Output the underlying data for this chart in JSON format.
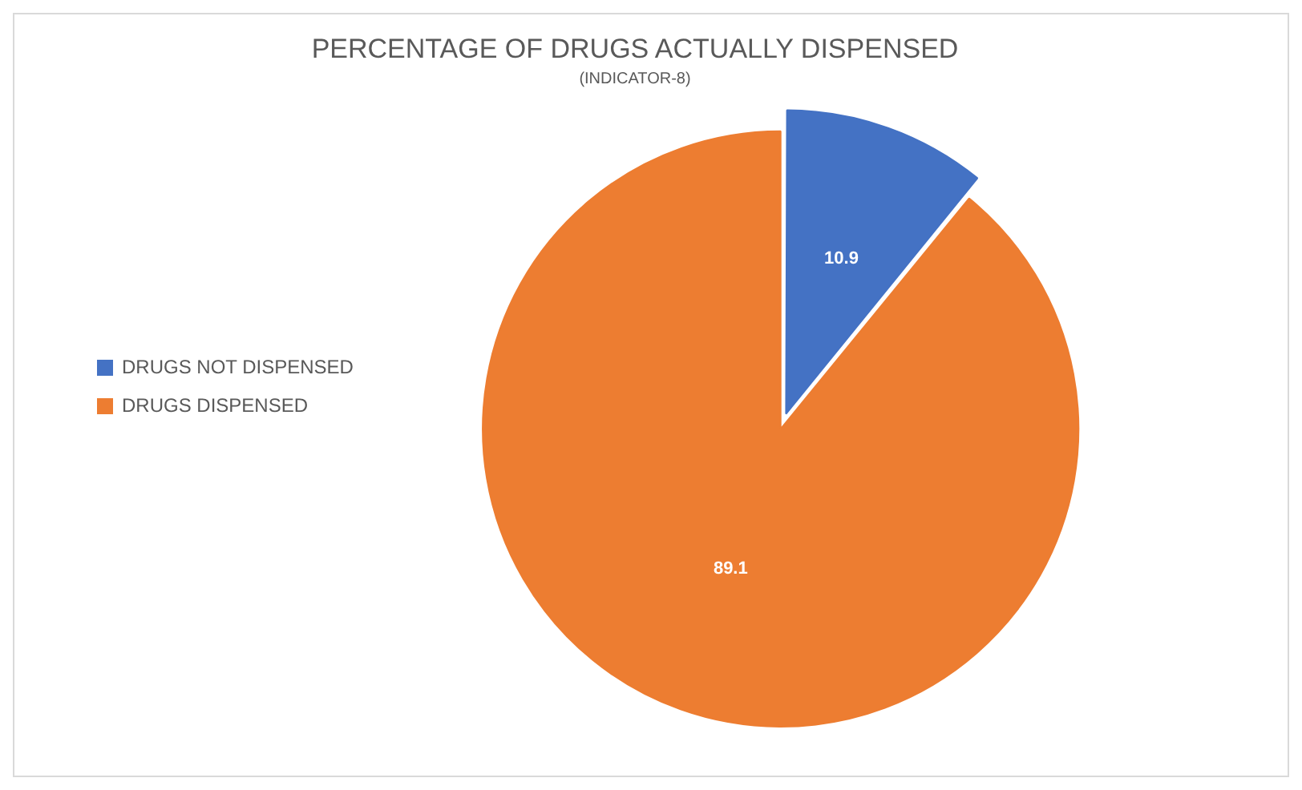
{
  "chart_data": {
    "type": "pie",
    "title": "PERCENTAGE OF DRUGS ACTUALLY DISPENSED",
    "subtitle": "(INDICATOR-8)",
    "categories": [
      "DRUGS NOT DISPENSED",
      "DRUGS DISPENSED"
    ],
    "values": [
      10.9,
      89.1
    ],
    "colors": [
      "#4472c4",
      "#ed7d31"
    ],
    "legend": "left",
    "data_labels": true
  }
}
